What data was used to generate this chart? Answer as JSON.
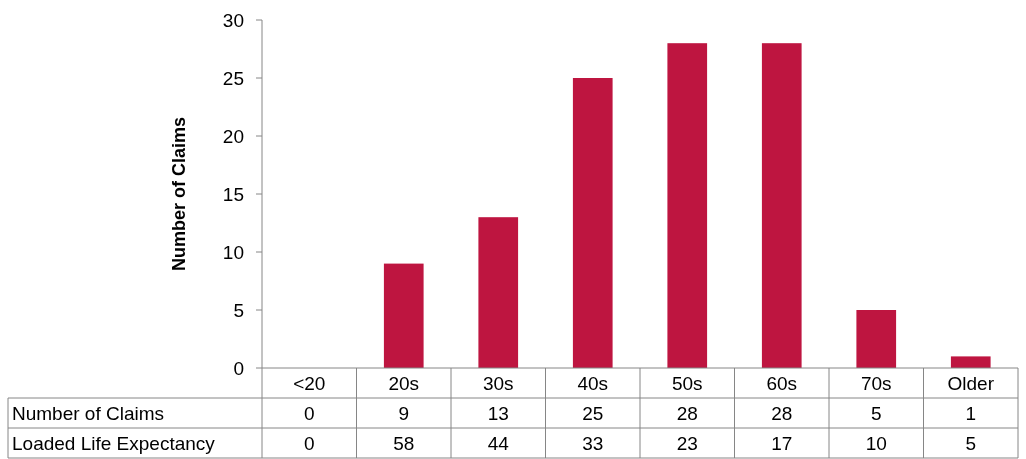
{
  "chart_data": {
    "type": "bar",
    "ylabel": "Number of Claims",
    "categories": [
      "<20",
      "20s",
      "30s",
      "40s",
      "50s",
      "60s",
      "70s",
      "Older"
    ],
    "series": [
      {
        "name": "Number of Claims",
        "color": "#be1540",
        "values": [
          0,
          9,
          13,
          25,
          28,
          28,
          5,
          1
        ]
      }
    ],
    "annotations": [
      "Loaded Life Expectancy",
      "0",
      "58",
      "44",
      "33",
      "23",
      "17",
      "10",
      "5"
    ],
    "ylim": [
      0,
      30
    ],
    "yticks": [
      0,
      5,
      10,
      15,
      20,
      25,
      30
    ],
    "grid": false,
    "data_labels": true
  }
}
